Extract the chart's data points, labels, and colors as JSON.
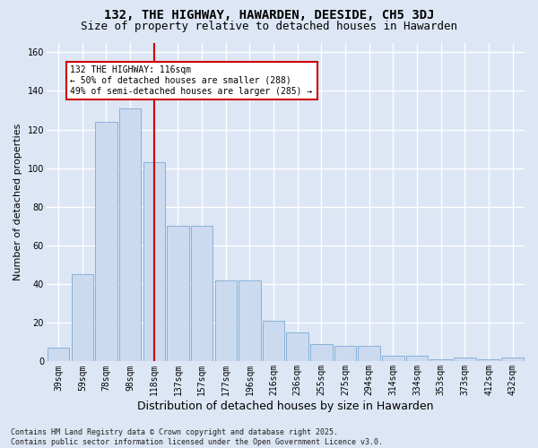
{
  "title": "132, THE HIGHWAY, HAWARDEN, DEESIDE, CH5 3DJ",
  "subtitle": "Size of property relative to detached houses in Hawarden",
  "xlabel": "Distribution of detached houses by size in Hawarden",
  "ylabel": "Number of detached properties",
  "categories": [
    "39sqm",
    "59sqm",
    "78sqm",
    "98sqm",
    "118sqm",
    "137sqm",
    "157sqm",
    "177sqm",
    "196sqm",
    "216sqm",
    "236sqm",
    "255sqm",
    "275sqm",
    "294sqm",
    "314sqm",
    "334sqm",
    "353sqm",
    "373sqm",
    "412sqm",
    "432sqm"
  ],
  "values": [
    7,
    45,
    124,
    131,
    103,
    70,
    70,
    42,
    42,
    21,
    15,
    9,
    8,
    8,
    3,
    3,
    1,
    2,
    1,
    2
  ],
  "bar_color": "#ccdaf0",
  "bar_edgecolor": "#7aaad4",
  "vline_x": 4,
  "vline_color": "#cc0000",
  "annotation_text": "132 THE HIGHWAY: 116sqm\n← 50% of detached houses are smaller (288)\n49% of semi-detached houses are larger (285) →",
  "annotation_box_color": "#cc0000",
  "annotation_facecolor": "white",
  "footer": "Contains HM Land Registry data © Crown copyright and database right 2025.\nContains public sector information licensed under the Open Government Licence v3.0.",
  "ylim": [
    0,
    165
  ],
  "yticks": [
    0,
    20,
    40,
    60,
    80,
    100,
    120,
    140,
    160
  ],
  "background_color": "#dde6f4",
  "plot_background": "#dde6f4",
  "grid_color": "white",
  "title_fontsize": 10,
  "subtitle_fontsize": 9,
  "tick_fontsize": 7,
  "ylabel_fontsize": 8,
  "xlabel_fontsize": 9
}
